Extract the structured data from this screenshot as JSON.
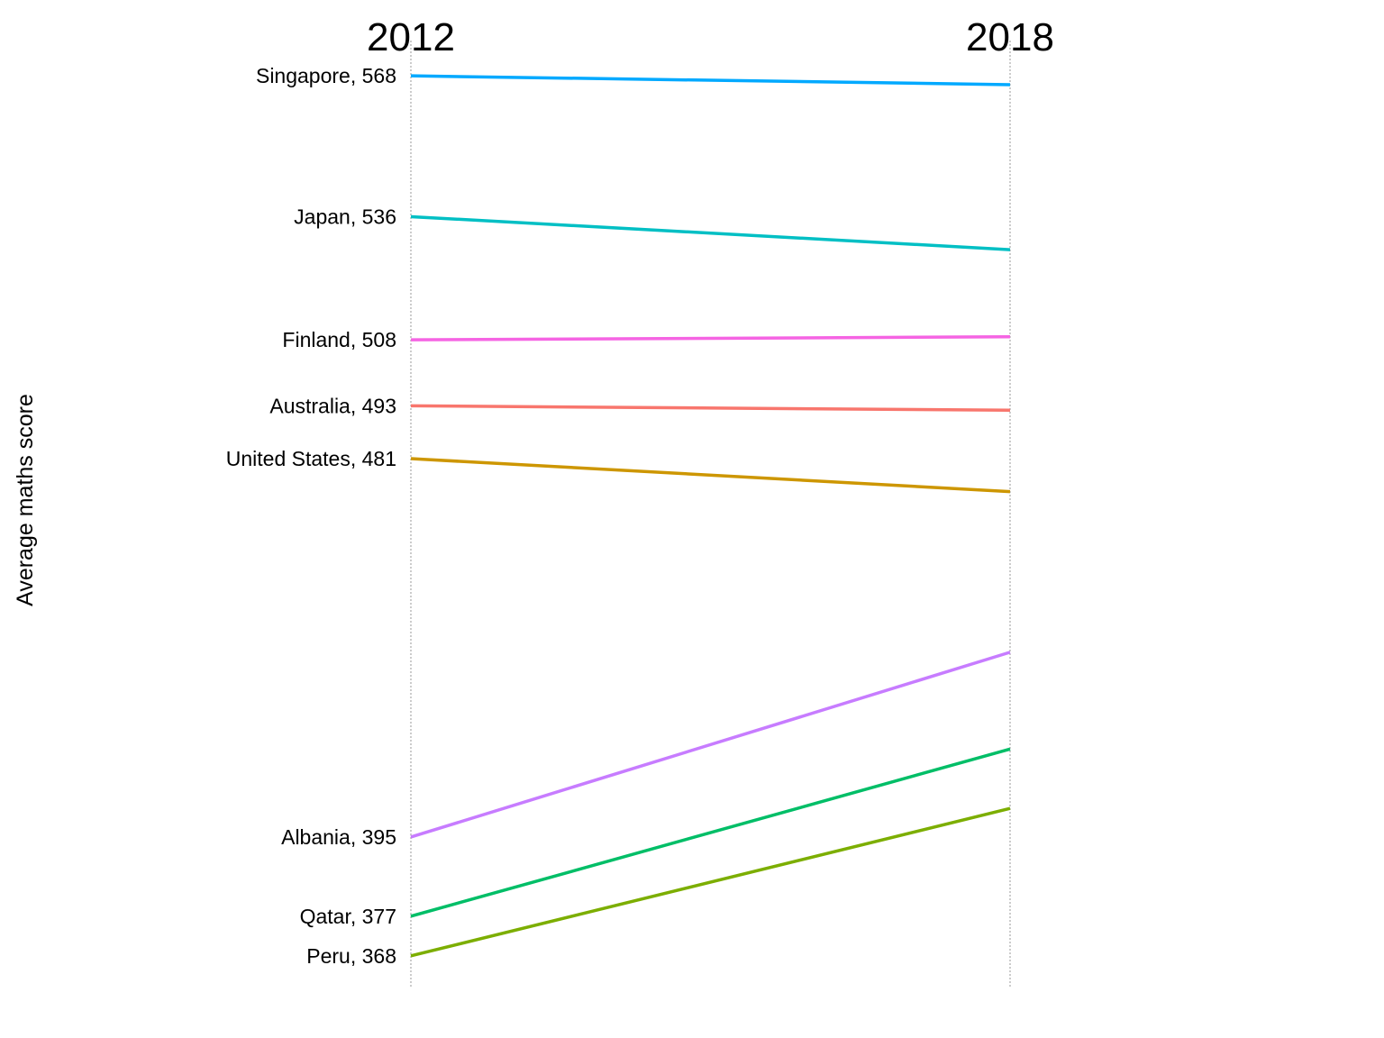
{
  "chart_data": {
    "type": "line",
    "x": [
      "2012",
      "2018"
    ],
    "ylabel": "Average maths score",
    "ylim": [
      361,
      575
    ],
    "series": [
      {
        "name": "Singapore",
        "values": [
          568,
          566
        ],
        "label": "Singapore, 568",
        "color": "#00A9FF"
      },
      {
        "name": "Japan",
        "values": [
          536,
          528.5
        ],
        "label": "Japan, 536",
        "color": "#00BFC4"
      },
      {
        "name": "Finland",
        "values": [
          508,
          508.7
        ],
        "label": "Finland, 508",
        "color": "#F564E3"
      },
      {
        "name": "Australia",
        "values": [
          493,
          492
        ],
        "label": "Australia, 493",
        "color": "#F8766D"
      },
      {
        "name": "United States",
        "values": [
          481,
          473.5
        ],
        "label": "United States, 481",
        "color": "#CD9600"
      },
      {
        "name": "Albania",
        "values": [
          395,
          437
        ],
        "label": "Albania, 395",
        "color": "#C77CFF"
      },
      {
        "name": "Qatar",
        "values": [
          377,
          415
        ],
        "label": "Qatar, 377",
        "color": "#00BE67"
      },
      {
        "name": "Peru",
        "values": [
          368,
          401.5
        ],
        "label": "Peru, 368",
        "color": "#7CAE00"
      }
    ]
  }
}
